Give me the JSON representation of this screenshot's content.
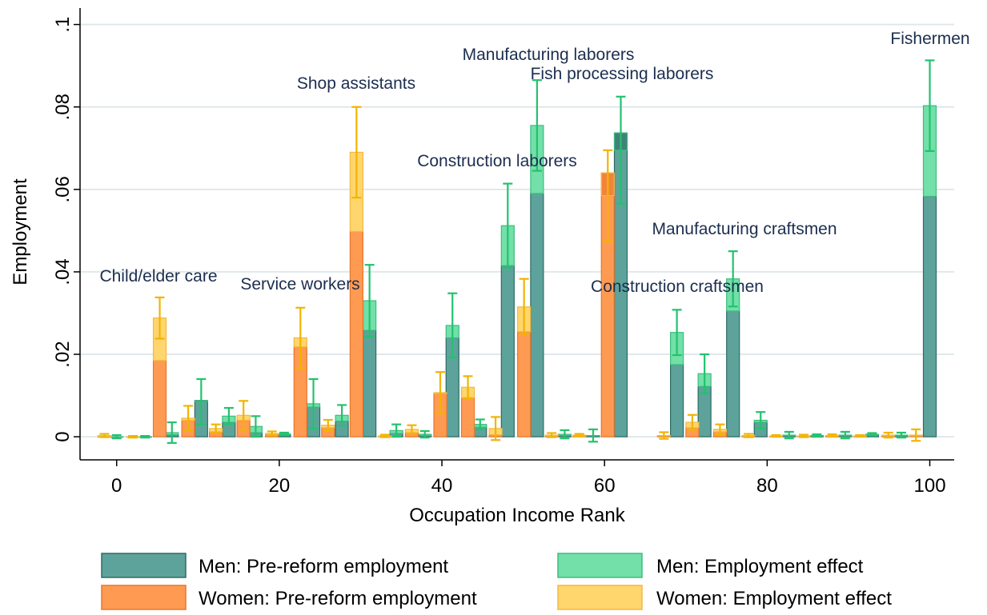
{
  "chart_data": {
    "type": "bar",
    "x_label": "Occupation Income Rank",
    "y_label": "Employment",
    "xlim": [
      -4.5,
      103
    ],
    "ylim": [
      -0.0056,
      0.104
    ],
    "xticks": [
      0,
      20,
      40,
      60,
      80,
      100
    ],
    "yticks": [
      0,
      {
        "value": 0.02,
        "label": ".02"
      },
      {
        "value": 0.04,
        "label": ".04"
      },
      {
        "value": 0.06,
        "label": ".06"
      },
      {
        "value": 0.08,
        "label": ".08"
      },
      {
        "value": 0.1,
        "label": ".1"
      }
    ],
    "grid": true,
    "annotations": [
      "Child/elder care",
      "Service workers",
      "Shop assistants",
      "Manufacturing laborers",
      "Fish processing laborers",
      "Construction laborers",
      "Manufacturing craftsmen",
      "Construction craftsmen",
      "Fishermen"
    ],
    "groups": [
      {
        "x": [
          0,
          3.5,
          6.8,
          10.4,
          13.8,
          17.1,
          20.6,
          24.2,
          27.7,
          31.1,
          34.4,
          37.9,
          41.3,
          44.7,
          48.1,
          51.7,
          55.1,
          58.6,
          62,
          68.9,
          72.3,
          75.8,
          79.2,
          82.7,
          86.1,
          89.6,
          92.9,
          96.5,
          100
        ],
        "pre": {
          "name": "Men: Pre-reform employment",
          "color": "#5ea39b",
          "stroke": "#2d6c64",
          "values": [
            0,
            0,
            0.0005,
            0.0088,
            0.0035,
            0.001,
            0.0005,
            0.0072,
            0.0038,
            0.0258,
            0.0008,
            0.0003,
            0.024,
            0.0023,
            0.0415,
            0.059,
            0.0003,
            0.0002,
            0.0737,
            0.0175,
            0.0122,
            0.0305,
            0.0035,
            0.0002,
            0.0002,
            0.0002,
            0.0004,
            0.0002,
            0.0583
          ]
        },
        "effect": {
          "name": "Men: Employment effect",
          "color": "#72e0a8",
          "stroke": "#3dbd80",
          "error_color": "#22c26e",
          "values": [
            0,
            0,
            0.0005,
            -0.0003,
            0.0015,
            0.0015,
            0.0002,
            0.0008,
            0.0014,
            0.0072,
            0.0007,
            0.0003,
            0.003,
            0.0007,
            0.0097,
            0.0165,
            0.0003,
            0.0001,
            -0.0042,
            0.0078,
            0.0031,
            0.0078,
            0.0005,
            0.0002,
            0.0001,
            0.0002,
            0.0002,
            0.0002,
            0.022
          ],
          "errors": [
            0.0004,
            0.0002,
            0.0025,
            0.0055,
            0.002,
            0.0025,
            0.0003,
            0.006,
            0.0025,
            0.0087,
            0.0015,
            0.0008,
            0.0078,
            0.0012,
            0.0102,
            0.011,
            0.001,
            0.0015,
            0.013,
            0.0055,
            0.0047,
            0.0067,
            0.002,
            0.0008,
            0.0003,
            0.0008,
            0.0003,
            0.0006,
            0.011
          ]
        }
      },
      {
        "x": [
          -1.5,
          2,
          5.3,
          8.8,
          12.2,
          15.6,
          19.1,
          22.6,
          26,
          29.5,
          33,
          36.3,
          39.8,
          43.2,
          46.6,
          50.1,
          53.5,
          56.9,
          60.4,
          67.3,
          70.8,
          74.2,
          77.7,
          81.1,
          84.5,
          88,
          91.4,
          94.9,
          98.3
        ],
        "pre": {
          "name": "Women: Pre-reform employment",
          "color": "#ff9a52",
          "stroke": "#e8772c",
          "values": [
            0,
            0,
            0.0185,
            0.004,
            0.0012,
            0.004,
            0.0006,
            0.0218,
            0.0022,
            0.0498,
            0.0001,
            0.001,
            0.0105,
            0.0095,
            0.0005,
            0.0255,
            0.0002,
            0.0002,
            0.064,
            0.0002,
            0.0022,
            0.0012,
            0.0002,
            0.0001,
            0.0001,
            0.0002,
            0.0001,
            0.0002,
            0.0002
          ]
        },
        "effect": {
          "name": "Women: Employment effect",
          "color": "#ffd56e",
          "stroke": "#f3b942",
          "error_color": "#f2b400",
          "values": [
            0.0003,
            0,
            0.0103,
            0.0005,
            0.0008,
            0.0012,
            0.0002,
            0.0022,
            0.0006,
            0.0192,
            0.0001,
            0.0008,
            0.0002,
            0.0025,
            0.0015,
            0.006,
            0.0002,
            0.0002,
            -0.0055,
            0.0001,
            0.0013,
            0.0006,
            0.0001,
            0.0001,
            0.0001,
            0.0001,
            0.0001,
            0.0002,
            0.0002
          ],
          "errors": [
            0.0004,
            0.0002,
            0.005,
            0.003,
            0.001,
            0.0035,
            0.0005,
            0.0073,
            0.0013,
            0.011,
            0.0003,
            0.001,
            0.005,
            0.0027,
            0.0028,
            0.0068,
            0.0005,
            0.0003,
            0.011,
            0.0008,
            0.0018,
            0.0012,
            0.0004,
            0.0002,
            0.0003,
            0.0003,
            0.0002,
            0.0006,
            0.0014
          ]
        }
      }
    ]
  }
}
